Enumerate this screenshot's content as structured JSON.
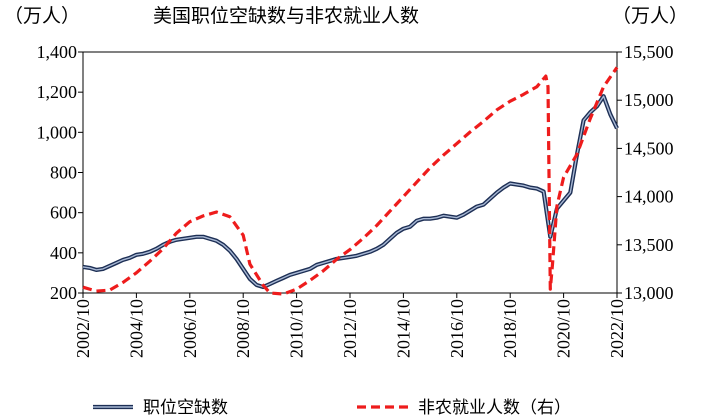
{
  "chart_data": {
    "type": "line",
    "title": "美国职位空缺数与非农就业人数",
    "left_unit": "（万人）",
    "right_unit": "（万人）",
    "ylim_left": [
      200,
      1400
    ],
    "ylim_right": [
      13000,
      15500
    ],
    "y_ticks_left": [
      "200",
      "400",
      "600",
      "800",
      "1,000",
      "1,200",
      "1,400"
    ],
    "y_ticks_right": [
      "13,000",
      "13,500",
      "14,000",
      "14,500",
      "15,000",
      "15,500"
    ],
    "x_range": [
      "2002-10",
      "2022-10"
    ],
    "x_ticks": [
      "2002/10",
      "2004/10",
      "2006/10",
      "2008/10",
      "2010/10",
      "2012/10",
      "2014/10",
      "2016/10",
      "2018/10",
      "2020/10",
      "2022/10"
    ],
    "legend_position": "bottom",
    "grid": false,
    "series": [
      {
        "name": "职位空缺数",
        "axis": "left",
        "color": "#3b5a8a",
        "points": [
          [
            "2002-10",
            330
          ],
          [
            "2003-01",
            325
          ],
          [
            "2003-04",
            315
          ],
          [
            "2003-07",
            320
          ],
          [
            "2003-10",
            335
          ],
          [
            "2004-01",
            350
          ],
          [
            "2004-04",
            365
          ],
          [
            "2004-07",
            375
          ],
          [
            "2004-10",
            390
          ],
          [
            "2005-01",
            395
          ],
          [
            "2005-04",
            405
          ],
          [
            "2005-07",
            420
          ],
          [
            "2005-10",
            440
          ],
          [
            "2006-01",
            455
          ],
          [
            "2006-04",
            465
          ],
          [
            "2006-07",
            470
          ],
          [
            "2006-10",
            475
          ],
          [
            "2007-01",
            480
          ],
          [
            "2007-04",
            480
          ],
          [
            "2007-07",
            470
          ],
          [
            "2007-10",
            460
          ],
          [
            "2008-01",
            440
          ],
          [
            "2008-04",
            410
          ],
          [
            "2008-07",
            370
          ],
          [
            "2008-10",
            320
          ],
          [
            "2009-01",
            270
          ],
          [
            "2009-04",
            240
          ],
          [
            "2009-07",
            230
          ],
          [
            "2009-10",
            245
          ],
          [
            "2010-01",
            260
          ],
          [
            "2010-04",
            275
          ],
          [
            "2010-07",
            290
          ],
          [
            "2010-10",
            300
          ],
          [
            "2011-01",
            310
          ],
          [
            "2011-04",
            320
          ],
          [
            "2011-07",
            340
          ],
          [
            "2011-10",
            350
          ],
          [
            "2012-01",
            360
          ],
          [
            "2012-04",
            370
          ],
          [
            "2012-07",
            375
          ],
          [
            "2012-10",
            380
          ],
          [
            "2013-01",
            385
          ],
          [
            "2013-04",
            395
          ],
          [
            "2013-07",
            405
          ],
          [
            "2013-10",
            420
          ],
          [
            "2014-01",
            440
          ],
          [
            "2014-04",
            470
          ],
          [
            "2014-07",
            500
          ],
          [
            "2014-10",
            520
          ],
          [
            "2015-01",
            530
          ],
          [
            "2015-04",
            560
          ],
          [
            "2015-07",
            570
          ],
          [
            "2015-10",
            570
          ],
          [
            "2016-01",
            575
          ],
          [
            "2016-04",
            585
          ],
          [
            "2016-07",
            580
          ],
          [
            "2016-10",
            575
          ],
          [
            "2017-01",
            590
          ],
          [
            "2017-04",
            610
          ],
          [
            "2017-07",
            630
          ],
          [
            "2017-10",
            640
          ],
          [
            "2018-01",
            670
          ],
          [
            "2018-04",
            700
          ],
          [
            "2018-07",
            725
          ],
          [
            "2018-10",
            745
          ],
          [
            "2019-01",
            740
          ],
          [
            "2019-04",
            735
          ],
          [
            "2019-07",
            725
          ],
          [
            "2019-10",
            720
          ],
          [
            "2020-01",
            705
          ],
          [
            "2020-04",
            480
          ],
          [
            "2020-07",
            620
          ],
          [
            "2020-10",
            660
          ],
          [
            "2021-01",
            700
          ],
          [
            "2021-04",
            890
          ],
          [
            "2021-07",
            1060
          ],
          [
            "2021-10",
            1100
          ],
          [
            "2022-01",
            1130
          ],
          [
            "2022-04",
            1180
          ],
          [
            "2022-07",
            1090
          ],
          [
            "2022-10",
            1020
          ]
        ]
      },
      {
        "name": "非农就业人数（右）",
        "axis": "right",
        "color": "#ee1c1c",
        "points": [
          [
            "2002-10",
            13060
          ],
          [
            "2003-04",
            13020
          ],
          [
            "2003-10",
            13030
          ],
          [
            "2004-04",
            13110
          ],
          [
            "2004-10",
            13210
          ],
          [
            "2005-04",
            13330
          ],
          [
            "2005-10",
            13460
          ],
          [
            "2006-04",
            13620
          ],
          [
            "2006-10",
            13740
          ],
          [
            "2007-04",
            13800
          ],
          [
            "2007-10",
            13840
          ],
          [
            "2008-04",
            13790
          ],
          [
            "2008-10",
            13600
          ],
          [
            "2009-01",
            13300
          ],
          [
            "2009-07",
            13080
          ],
          [
            "2009-10",
            13000
          ],
          [
            "2010-04",
            12990
          ],
          [
            "2010-10",
            13040
          ],
          [
            "2011-04",
            13130
          ],
          [
            "2011-10",
            13230
          ],
          [
            "2012-04",
            13350
          ],
          [
            "2012-10",
            13450
          ],
          [
            "2013-04",
            13570
          ],
          [
            "2013-10",
            13700
          ],
          [
            "2014-04",
            13850
          ],
          [
            "2014-10",
            14000
          ],
          [
            "2015-04",
            14150
          ],
          [
            "2015-10",
            14300
          ],
          [
            "2016-04",
            14430
          ],
          [
            "2016-10",
            14550
          ],
          [
            "2017-04",
            14670
          ],
          [
            "2017-10",
            14780
          ],
          [
            "2018-04",
            14900
          ],
          [
            "2018-10",
            14990
          ],
          [
            "2019-04",
            15060
          ],
          [
            "2019-10",
            15140
          ],
          [
            "2020-02",
            15250
          ],
          [
            "2020-03",
            15140
          ],
          [
            "2020-04",
            13040
          ],
          [
            "2020-05",
            13300
          ],
          [
            "2020-07",
            13900
          ],
          [
            "2020-10",
            14200
          ],
          [
            "2021-04",
            14440
          ],
          [
            "2021-10",
            14810
          ],
          [
            "2022-04",
            15140
          ],
          [
            "2022-10",
            15340
          ]
        ]
      }
    ]
  }
}
